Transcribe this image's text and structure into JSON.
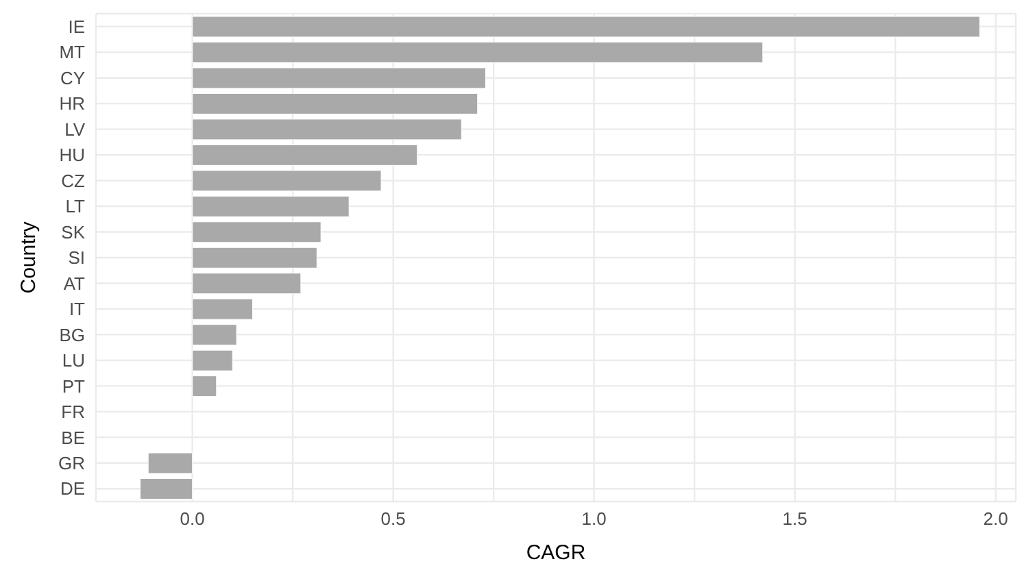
{
  "chart_data": {
    "type": "bar",
    "orientation": "horizontal",
    "xlabel": "CAGR",
    "ylabel": "Country",
    "categories": [
      "IE",
      "MT",
      "CY",
      "HR",
      "LV",
      "HU",
      "CZ",
      "LT",
      "SK",
      "SI",
      "AT",
      "IT",
      "BG",
      "LU",
      "PT",
      "FR",
      "BE",
      "GR",
      "DE"
    ],
    "values": [
      1.96,
      1.42,
      0.73,
      0.71,
      0.67,
      0.56,
      0.47,
      0.39,
      0.32,
      0.31,
      0.27,
      0.15,
      0.11,
      0.1,
      0.06,
      0,
      0,
      -0.11,
      -0.13
    ],
    "color": "#a9a9a9",
    "xlim": [
      -0.24,
      2.05
    ],
    "xticks": [
      {
        "value": 0,
        "label": "0.0"
      },
      {
        "value": 0.25,
        "label": null
      },
      {
        "value": 0.5,
        "label": "0.5"
      },
      {
        "value": 0.75,
        "label": null
      },
      {
        "value": 1,
        "label": "1.0"
      },
      {
        "value": 1.25,
        "label": null
      },
      {
        "value": 1.5,
        "label": "1.5"
      },
      {
        "value": 1.75,
        "label": null
      },
      {
        "value": 2,
        "label": "2.0"
      }
    ],
    "grid": true
  }
}
